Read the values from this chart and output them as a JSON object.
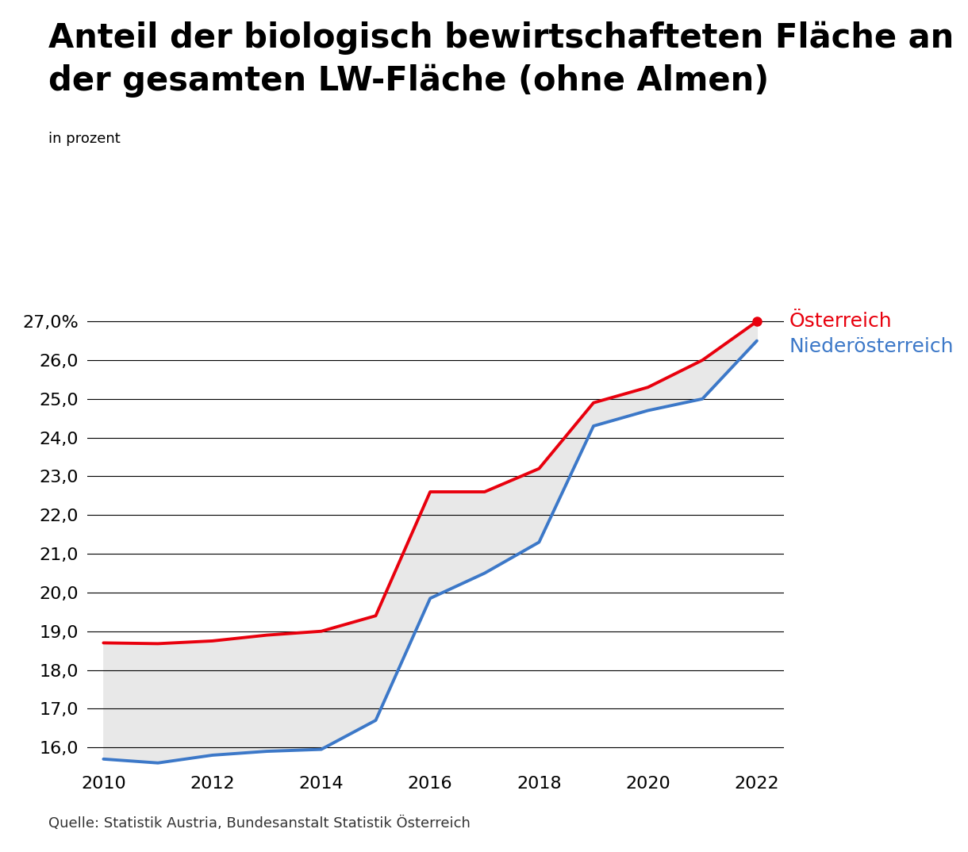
{
  "title_line1": "Anteil der biologisch bewirtschafteten Fläche an",
  "title_line2": "der gesamten LW-Fläche (ohne Almen)",
  "ylabel": "in prozent",
  "source": "Quelle: Statistik Austria, Bundesanstalt Statistik Österreich",
  "years": [
    2010,
    2011,
    2012,
    2013,
    2014,
    2015,
    2016,
    2017,
    2018,
    2019,
    2020,
    2021,
    2022
  ],
  "oesterreich": [
    18.7,
    18.68,
    18.75,
    18.9,
    19.0,
    19.4,
    22.6,
    22.6,
    23.2,
    24.9,
    25.3,
    26.0,
    27.0
  ],
  "niederoesterreich": [
    15.7,
    15.6,
    15.8,
    15.9,
    15.95,
    16.7,
    19.85,
    20.5,
    21.3,
    24.3,
    24.7,
    25.0,
    26.5
  ],
  "color_oesterreich": "#e8000d",
  "color_niederoesterreich": "#3c78c8",
  "fill_color": "#e8e8e8",
  "ylim_min": 15.5,
  "ylim_max": 27.6,
  "yticks": [
    16.0,
    17.0,
    18.0,
    19.0,
    20.0,
    21.0,
    22.0,
    23.0,
    24.0,
    25.0,
    26.0,
    27.0
  ],
  "title_fontsize": 30,
  "axis_fontsize": 16,
  "label_fontsize": 18,
  "source_fontsize": 13,
  "line_width": 2.8,
  "background_color": "#ffffff",
  "xticks": [
    2010,
    2012,
    2014,
    2016,
    2018,
    2020,
    2022
  ]
}
